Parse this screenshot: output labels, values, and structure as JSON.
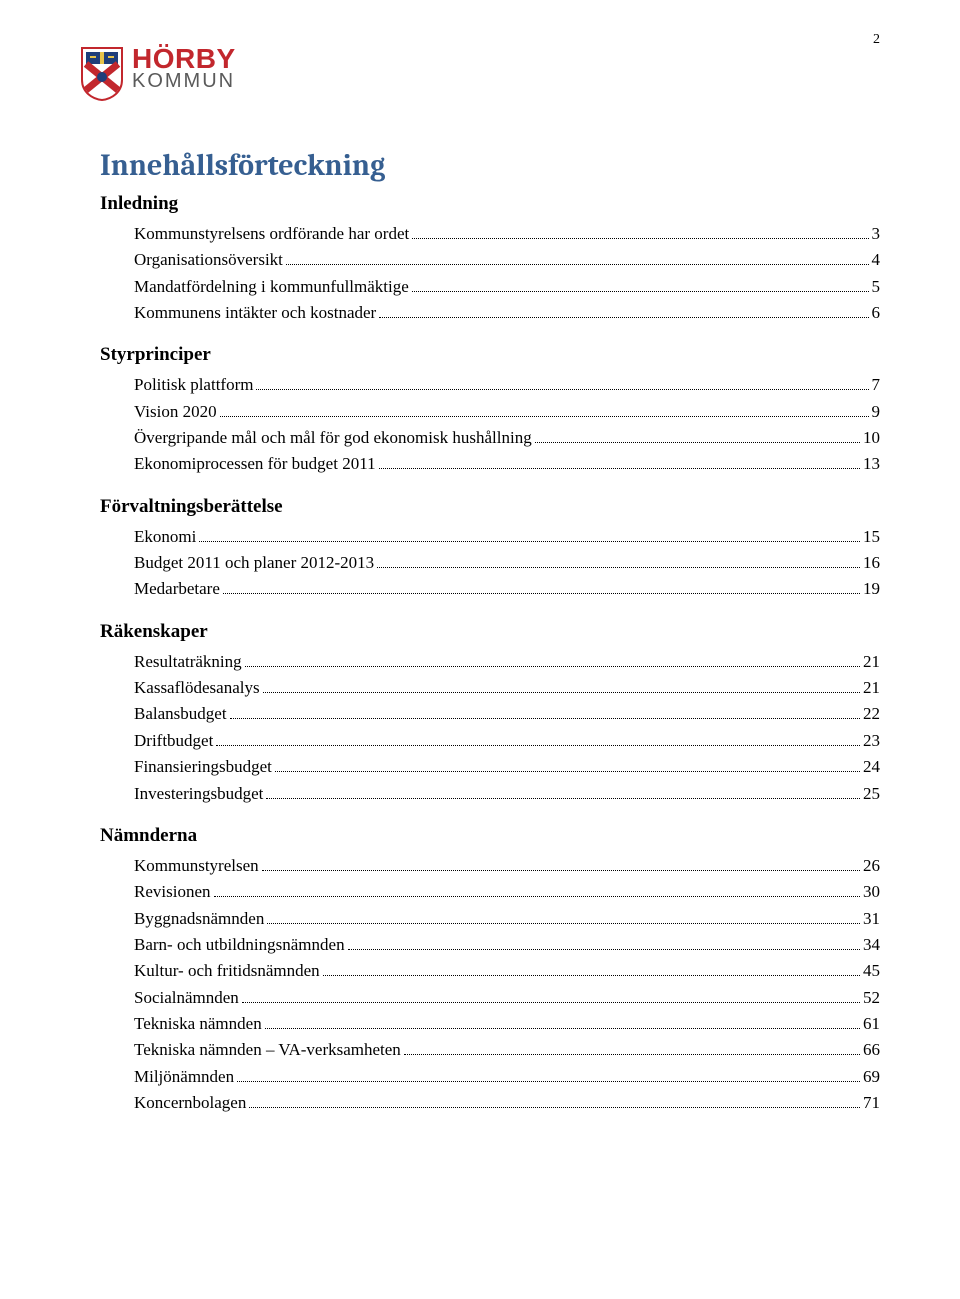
{
  "page_number": "2",
  "logo": {
    "line1": "HÖRBY",
    "line2": "KOMMUN",
    "brand_color": "#c2272d",
    "sub_color": "#5a5a5a"
  },
  "title": "Innehållsförteckning",
  "sections": [
    {
      "heading": "Inledning",
      "items": [
        {
          "label": "Kommunstyrelsens ordförande har ordet",
          "page": "3"
        },
        {
          "label": "Organisationsöversikt",
          "page": "4"
        },
        {
          "label": "Mandatfördelning i kommunfullmäktige",
          "page": "5"
        },
        {
          "label": "Kommunens intäkter och kostnader",
          "page": "6"
        }
      ]
    },
    {
      "heading": "Styrprinciper",
      "items": [
        {
          "label": "Politisk plattform",
          "page": "7"
        },
        {
          "label": "Vision 2020",
          "page": "9"
        },
        {
          "label": "Övergripande mål och mål för god ekonomisk hushållning",
          "page": "10"
        },
        {
          "label": "Ekonomiprocessen för budget 2011",
          "page": "13"
        }
      ]
    },
    {
      "heading": "Förvaltningsberättelse",
      "items": [
        {
          "label": "Ekonomi",
          "page": "15"
        },
        {
          "label": "Budget 2011 och planer 2012-2013",
          "page": "16"
        },
        {
          "label": "Medarbetare",
          "page": "19"
        }
      ]
    },
    {
      "heading": "Räkenskaper",
      "items": [
        {
          "label": "Resultaträkning",
          "page": "21"
        },
        {
          "label": "Kassaflödesanalys",
          "page": "21"
        },
        {
          "label": "Balansbudget",
          "page": "22"
        },
        {
          "label": "Driftbudget",
          "page": "23"
        },
        {
          "label": "Finansieringsbudget",
          "page": "24"
        },
        {
          "label": "Investeringsbudget",
          "page": "25"
        }
      ]
    },
    {
      "heading": "Nämnderna",
      "items": [
        {
          "label": "Kommunstyrelsen",
          "page": "26"
        },
        {
          "label": "Revisionen",
          "page": "30"
        },
        {
          "label": "Byggnadsnämnden",
          "page": "31"
        },
        {
          "label": "Barn- och utbildningsnämnden",
          "page": "34"
        },
        {
          "label": "Kultur- och fritidsnämnden",
          "page": "45"
        },
        {
          "label": "Socialnämnden",
          "page": "52"
        },
        {
          "label": "Tekniska nämnden",
          "page": "61"
        },
        {
          "label": "Tekniska nämnden – VA-verksamheten",
          "page": "66"
        },
        {
          "label": "Miljönämnden",
          "page": "69"
        },
        {
          "label": "Koncernbolagen",
          "page": "71"
        }
      ]
    }
  ]
}
